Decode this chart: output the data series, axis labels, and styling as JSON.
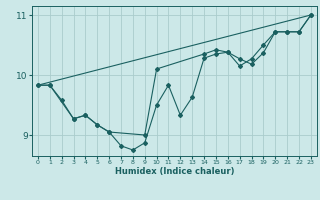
{
  "xlabel": "Humidex (Indice chaleur)",
  "bg_color": "#cce8e8",
  "grid_color": "#aacccc",
  "line_color": "#1a6060",
  "xlim": [
    -0.5,
    23.5
  ],
  "ylim": [
    8.65,
    11.15
  ],
  "yticks": [
    9,
    10,
    11
  ],
  "xticks": [
    0,
    1,
    2,
    3,
    4,
    5,
    6,
    7,
    8,
    9,
    10,
    11,
    12,
    13,
    14,
    15,
    16,
    17,
    18,
    19,
    20,
    21,
    22,
    23
  ],
  "series": [
    {
      "x": [
        0,
        1,
        2,
        3,
        4,
        5,
        6,
        7,
        8,
        9,
        10,
        11,
        12,
        13,
        14,
        15,
        16,
        17,
        18,
        19,
        20,
        21,
        22,
        23
      ],
      "y": [
        9.83,
        9.83,
        9.58,
        9.27,
        9.33,
        9.17,
        9.05,
        8.82,
        8.75,
        8.87,
        9.5,
        9.83,
        9.33,
        9.63,
        10.28,
        10.35,
        10.38,
        10.27,
        10.18,
        10.37,
        10.72,
        10.72,
        10.72,
        11.0
      ],
      "marker": true
    },
    {
      "x": [
        0,
        1,
        3,
        4,
        5,
        6,
        9,
        10,
        14,
        15,
        16,
        17,
        18,
        19,
        20,
        21,
        22,
        23
      ],
      "y": [
        9.83,
        9.83,
        9.27,
        9.33,
        9.17,
        9.05,
        9.0,
        10.1,
        10.35,
        10.42,
        10.38,
        10.15,
        10.27,
        10.5,
        10.72,
        10.72,
        10.72,
        11.0
      ],
      "marker": true
    },
    {
      "x": [
        0,
        23
      ],
      "y": [
        9.83,
        11.0
      ],
      "marker": false
    }
  ]
}
